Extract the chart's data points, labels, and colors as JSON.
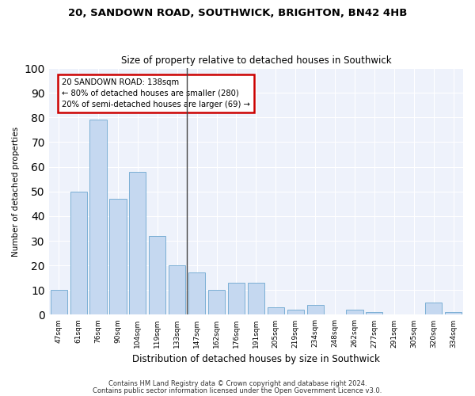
{
  "title1": "20, SANDOWN ROAD, SOUTHWICK, BRIGHTON, BN42 4HB",
  "title2": "Size of property relative to detached houses in Southwick",
  "xlabel": "Distribution of detached houses by size in Southwick",
  "ylabel": "Number of detached properties",
  "categories": [
    "47sqm",
    "61sqm",
    "76sqm",
    "90sqm",
    "104sqm",
    "119sqm",
    "133sqm",
    "147sqm",
    "162sqm",
    "176sqm",
    "191sqm",
    "205sqm",
    "219sqm",
    "234sqm",
    "248sqm",
    "262sqm",
    "277sqm",
    "291sqm",
    "305sqm",
    "320sqm",
    "334sqm"
  ],
  "values": [
    10,
    50,
    79,
    47,
    58,
    32,
    20,
    17,
    10,
    13,
    13,
    3,
    2,
    4,
    0,
    2,
    1,
    0,
    0,
    5,
    1
  ],
  "bar_color": "#c5d8f0",
  "bar_edge_color": "#7bafd4",
  "highlight_line_index": 6,
  "annotation_text": "20 SANDOWN ROAD: 138sqm\n← 80% of detached houses are smaller (280)\n20% of semi-detached houses are larger (69) →",
  "annotation_box_color": "#ffffff",
  "annotation_box_edge_color": "#cc0000",
  "ylim": [
    0,
    100
  ],
  "yticks": [
    0,
    10,
    20,
    30,
    40,
    50,
    60,
    70,
    80,
    90,
    100
  ],
  "background_color": "#eef2fb",
  "footer1": "Contains HM Land Registry data © Crown copyright and database right 2024.",
  "footer2": "Contains public sector information licensed under the Open Government Licence v3.0."
}
